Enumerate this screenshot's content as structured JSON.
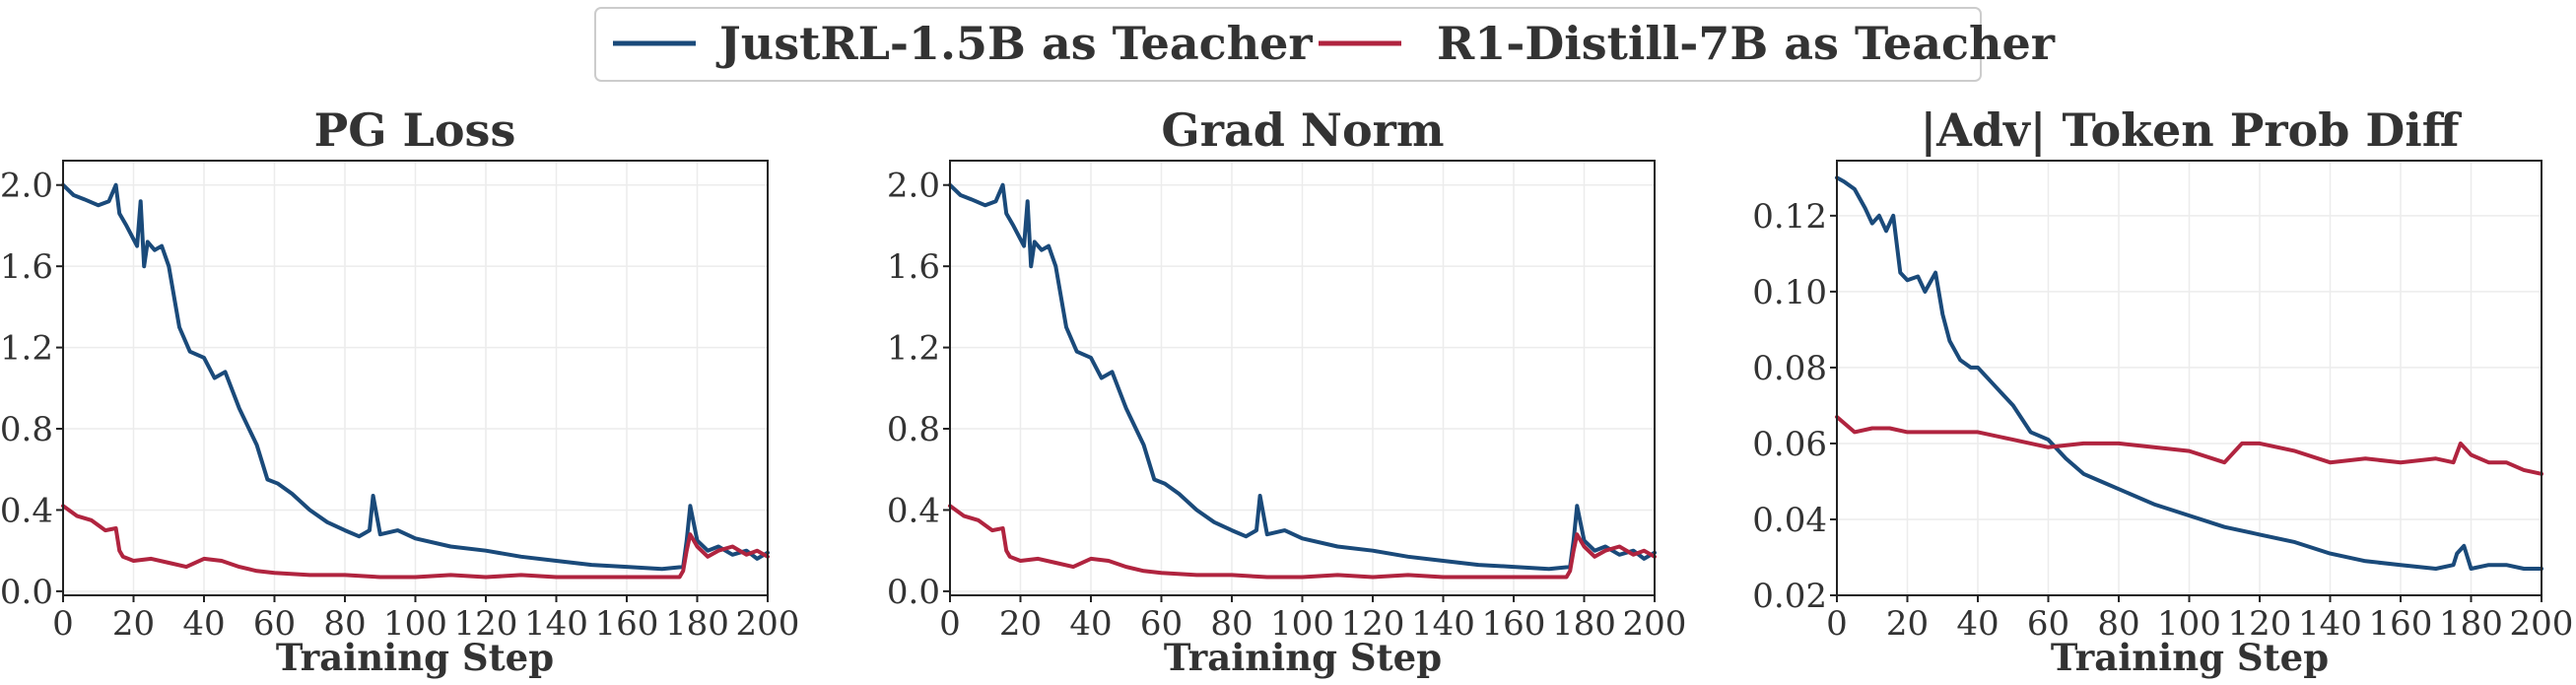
{
  "legend": {
    "placement": "top-center",
    "items": [
      {
        "label": "JustRL-1.5B as Teacher",
        "color": "#1a4a7a"
      },
      {
        "label": "R1-Distill-7B as Teacher",
        "color": "#b0243f"
      }
    ]
  },
  "chart_data": [
    {
      "type": "line",
      "title": "PG Loss",
      "xlabel": "Training Step",
      "ylabel": "",
      "xlim": [
        0,
        200
      ],
      "ylim": [
        -0.02,
        2.12
      ],
      "xticks": [
        0,
        20,
        40,
        60,
        80,
        100,
        120,
        140,
        160,
        180,
        200
      ],
      "yticks": [
        0.0,
        0.4,
        0.8,
        1.2,
        1.6,
        2.0
      ],
      "ytick_labels": [
        "0.0",
        "0.4",
        "0.8",
        "1.2",
        "1.6",
        "2.0"
      ],
      "grid": true,
      "series": [
        {
          "name": "JustRL-1.5B as Teacher",
          "color": "#1a4a7a",
          "x": [
            0,
            3,
            6,
            10,
            13,
            15,
            16,
            18,
            21,
            22,
            23,
            24,
            26,
            28,
            30,
            33,
            36,
            40,
            43,
            46,
            50,
            55,
            58,
            61,
            65,
            70,
            75,
            80,
            84,
            87,
            88,
            90,
            95,
            100,
            110,
            120,
            130,
            140,
            150,
            160,
            170,
            176,
            177,
            178,
            180,
            183,
            186,
            190,
            194,
            197,
            200
          ],
          "values": [
            2.0,
            1.95,
            1.93,
            1.9,
            1.92,
            2.0,
            1.86,
            1.8,
            1.7,
            1.92,
            1.6,
            1.72,
            1.68,
            1.7,
            1.6,
            1.3,
            1.18,
            1.15,
            1.05,
            1.08,
            0.9,
            0.72,
            0.55,
            0.53,
            0.48,
            0.4,
            0.34,
            0.3,
            0.27,
            0.3,
            0.47,
            0.28,
            0.3,
            0.26,
            0.22,
            0.2,
            0.17,
            0.15,
            0.13,
            0.12,
            0.11,
            0.12,
            0.25,
            0.42,
            0.25,
            0.2,
            0.22,
            0.18,
            0.2,
            0.16,
            0.19
          ]
        },
        {
          "name": "R1-Distill-7B as Teacher",
          "color": "#b0243f",
          "x": [
            0,
            4,
            8,
            12,
            15,
            16,
            17,
            20,
            25,
            30,
            35,
            40,
            45,
            50,
            55,
            60,
            70,
            80,
            90,
            100,
            110,
            120,
            130,
            140,
            150,
            160,
            170,
            175,
            176,
            177,
            178,
            180,
            183,
            186,
            190,
            194,
            197,
            200
          ],
          "values": [
            0.42,
            0.37,
            0.35,
            0.3,
            0.31,
            0.2,
            0.17,
            0.15,
            0.16,
            0.14,
            0.12,
            0.16,
            0.15,
            0.12,
            0.1,
            0.09,
            0.08,
            0.08,
            0.07,
            0.07,
            0.08,
            0.07,
            0.08,
            0.07,
            0.07,
            0.07,
            0.07,
            0.07,
            0.1,
            0.2,
            0.28,
            0.22,
            0.17,
            0.2,
            0.22,
            0.18,
            0.2,
            0.17
          ]
        }
      ]
    },
    {
      "type": "line",
      "title": "Grad Norm",
      "xlabel": "Training Step",
      "ylabel": "",
      "xlim": [
        0,
        200
      ],
      "ylim": [
        -0.02,
        2.12
      ],
      "xticks": [
        0,
        20,
        40,
        60,
        80,
        100,
        120,
        140,
        160,
        180,
        200
      ],
      "yticks": [
        0.0,
        0.4,
        0.8,
        1.2,
        1.6,
        2.0
      ],
      "ytick_labels": [
        "0.0",
        "0.4",
        "0.8",
        "1.2",
        "1.6",
        "2.0"
      ],
      "grid": true,
      "series": [
        {
          "name": "JustRL-1.5B as Teacher",
          "color": "#1a4a7a",
          "x": [
            0,
            3,
            6,
            10,
            13,
            15,
            16,
            18,
            21,
            22,
            23,
            24,
            26,
            28,
            30,
            33,
            36,
            40,
            43,
            46,
            50,
            55,
            58,
            61,
            65,
            70,
            75,
            80,
            84,
            87,
            88,
            90,
            95,
            100,
            110,
            120,
            130,
            140,
            150,
            160,
            170,
            176,
            177,
            178,
            180,
            183,
            186,
            190,
            194,
            197,
            200
          ],
          "values": [
            2.0,
            1.95,
            1.93,
            1.9,
            1.92,
            2.0,
            1.86,
            1.8,
            1.7,
            1.92,
            1.6,
            1.72,
            1.68,
            1.7,
            1.6,
            1.3,
            1.18,
            1.15,
            1.05,
            1.08,
            0.9,
            0.72,
            0.55,
            0.53,
            0.48,
            0.4,
            0.34,
            0.3,
            0.27,
            0.3,
            0.47,
            0.28,
            0.3,
            0.26,
            0.22,
            0.2,
            0.17,
            0.15,
            0.13,
            0.12,
            0.11,
            0.12,
            0.25,
            0.42,
            0.25,
            0.2,
            0.22,
            0.18,
            0.2,
            0.16,
            0.19
          ]
        },
        {
          "name": "R1-Distill-7B as Teacher",
          "color": "#b0243f",
          "x": [
            0,
            4,
            8,
            12,
            15,
            16,
            17,
            20,
            25,
            30,
            35,
            40,
            45,
            50,
            55,
            60,
            70,
            80,
            90,
            100,
            110,
            120,
            130,
            140,
            150,
            160,
            170,
            175,
            176,
            177,
            178,
            180,
            183,
            186,
            190,
            194,
            197,
            200
          ],
          "values": [
            0.42,
            0.37,
            0.35,
            0.3,
            0.31,
            0.2,
            0.17,
            0.15,
            0.16,
            0.14,
            0.12,
            0.16,
            0.15,
            0.12,
            0.1,
            0.09,
            0.08,
            0.08,
            0.07,
            0.07,
            0.08,
            0.07,
            0.08,
            0.07,
            0.07,
            0.07,
            0.07,
            0.07,
            0.1,
            0.2,
            0.28,
            0.22,
            0.17,
            0.2,
            0.22,
            0.18,
            0.2,
            0.17
          ]
        }
      ]
    },
    {
      "type": "line",
      "title": "|Adv| Token Prob Diff",
      "xlabel": "Training Step",
      "ylabel": "",
      "xlim": [
        0,
        200
      ],
      "ylim": [
        0.02,
        0.1345
      ],
      "xticks": [
        0,
        20,
        40,
        60,
        80,
        100,
        120,
        140,
        160,
        180,
        200
      ],
      "yticks": [
        0.02,
        0.04,
        0.06,
        0.08,
        0.1,
        0.12
      ],
      "ytick_labels": [
        "0.02",
        "0.04",
        "0.06",
        "0.08",
        "0.10",
        "0.12"
      ],
      "grid": true,
      "series": [
        {
          "name": "JustRL-1.5B as Teacher",
          "color": "#1a4a7a",
          "x": [
            0,
            2,
            5,
            8,
            10,
            12,
            14,
            16,
            18,
            20,
            23,
            25,
            28,
            30,
            32,
            35,
            38,
            40,
            45,
            50,
            55,
            60,
            65,
            70,
            75,
            80,
            90,
            100,
            110,
            120,
            130,
            140,
            150,
            160,
            170,
            175,
            176,
            178,
            180,
            185,
            190,
            195,
            200
          ],
          "values": [
            0.13,
            0.129,
            0.127,
            0.122,
            0.118,
            0.12,
            0.116,
            0.12,
            0.105,
            0.103,
            0.104,
            0.1,
            0.105,
            0.094,
            0.087,
            0.082,
            0.08,
            0.08,
            0.075,
            0.07,
            0.063,
            0.061,
            0.056,
            0.052,
            0.05,
            0.048,
            0.044,
            0.041,
            0.038,
            0.036,
            0.034,
            0.031,
            0.029,
            0.028,
            0.027,
            0.028,
            0.031,
            0.033,
            0.027,
            0.028,
            0.028,
            0.027,
            0.027
          ]
        },
        {
          "name": "R1-Distill-7B as Teacher",
          "color": "#b0243f",
          "x": [
            0,
            5,
            10,
            15,
            20,
            30,
            40,
            50,
            60,
            70,
            80,
            90,
            100,
            110,
            115,
            120,
            130,
            140,
            150,
            160,
            170,
            175,
            177,
            180,
            185,
            190,
            195,
            200
          ],
          "values": [
            0.067,
            0.063,
            0.064,
            0.064,
            0.063,
            0.063,
            0.063,
            0.061,
            0.059,
            0.06,
            0.06,
            0.059,
            0.058,
            0.055,
            0.06,
            0.06,
            0.058,
            0.055,
            0.056,
            0.055,
            0.056,
            0.055,
            0.06,
            0.057,
            0.055,
            0.055,
            0.053,
            0.052
          ]
        }
      ]
    }
  ]
}
